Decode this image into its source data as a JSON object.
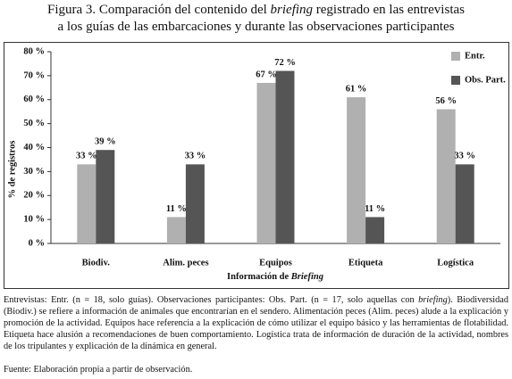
{
  "caption": {
    "line1": {
      "before": "Figura 3. Comparación del contenido del",
      "emphasis": "briefing",
      "after": "registrado en las entrevistas"
    },
    "line2": "a los guías de las embarcaciones y durante las observaciones participantes"
  },
  "chart_data": {
    "type": "bar",
    "y_label": "% de registros",
    "x_label": {
      "text": "Información de",
      "emphasis": "Briefing"
    },
    "categories": [
      "Biodiv.",
      "Alim. peces",
      "Equipos",
      "Etiqueta",
      "Logística"
    ],
    "series": [
      {
        "name": "Entr.",
        "color": "#b0b0b0",
        "values": [
          33,
          11,
          67,
          61,
          56
        ],
        "value_labels": [
          "33 %",
          "11 %",
          "67 %",
          "61 %",
          "56 %"
        ]
      },
      {
        "name": "Obs. Part.",
        "color": "#555555",
        "values": [
          39,
          33,
          72,
          11,
          33
        ],
        "value_labels": [
          "39 %",
          "33 %",
          "72 %",
          "11 %",
          "33 %"
        ]
      }
    ],
    "ylim": [
      0,
      80
    ],
    "yticks": [
      {
        "value": 0,
        "label": "0 %"
      },
      {
        "value": 10,
        "label": "10 %"
      },
      {
        "value": 20,
        "label": "20 %"
      },
      {
        "value": 30,
        "label": "30 %"
      },
      {
        "value": 40,
        "label": "40 %"
      },
      {
        "value": 50,
        "label": "50 %"
      },
      {
        "value": 60,
        "label": "60 %"
      },
      {
        "value": 70,
        "label": "70 %"
      },
      {
        "value": 80,
        "label": "80 %"
      }
    ],
    "grid": false,
    "legend": "top-right"
  },
  "notes": {
    "before": "Entrevistas: Entr. (n = 18, solo guías). Observaciones participantes: Obs. Part. (n = 17, solo aquellas con",
    "emphasis": "briefing",
    "after": "). Biodiversidad (Biodiv.) se refiere a información de animales que encontrarían en el sendero. Alimentación peces (Alim. peces) alude a la explicación y promoción de la actividad. Equipos hace referencia a la explicación de cómo utilizar el equipo básico y las herramientas de flotabilidad. Etiqueta hace alusión a recomendaciones de buen comportamiento. Logística trata de información de duración de la actividad, nombres de los tripulantes y explicación de la dinámica en general.",
    "source": "Fuente: Elaboración propia a partir de observación."
  }
}
